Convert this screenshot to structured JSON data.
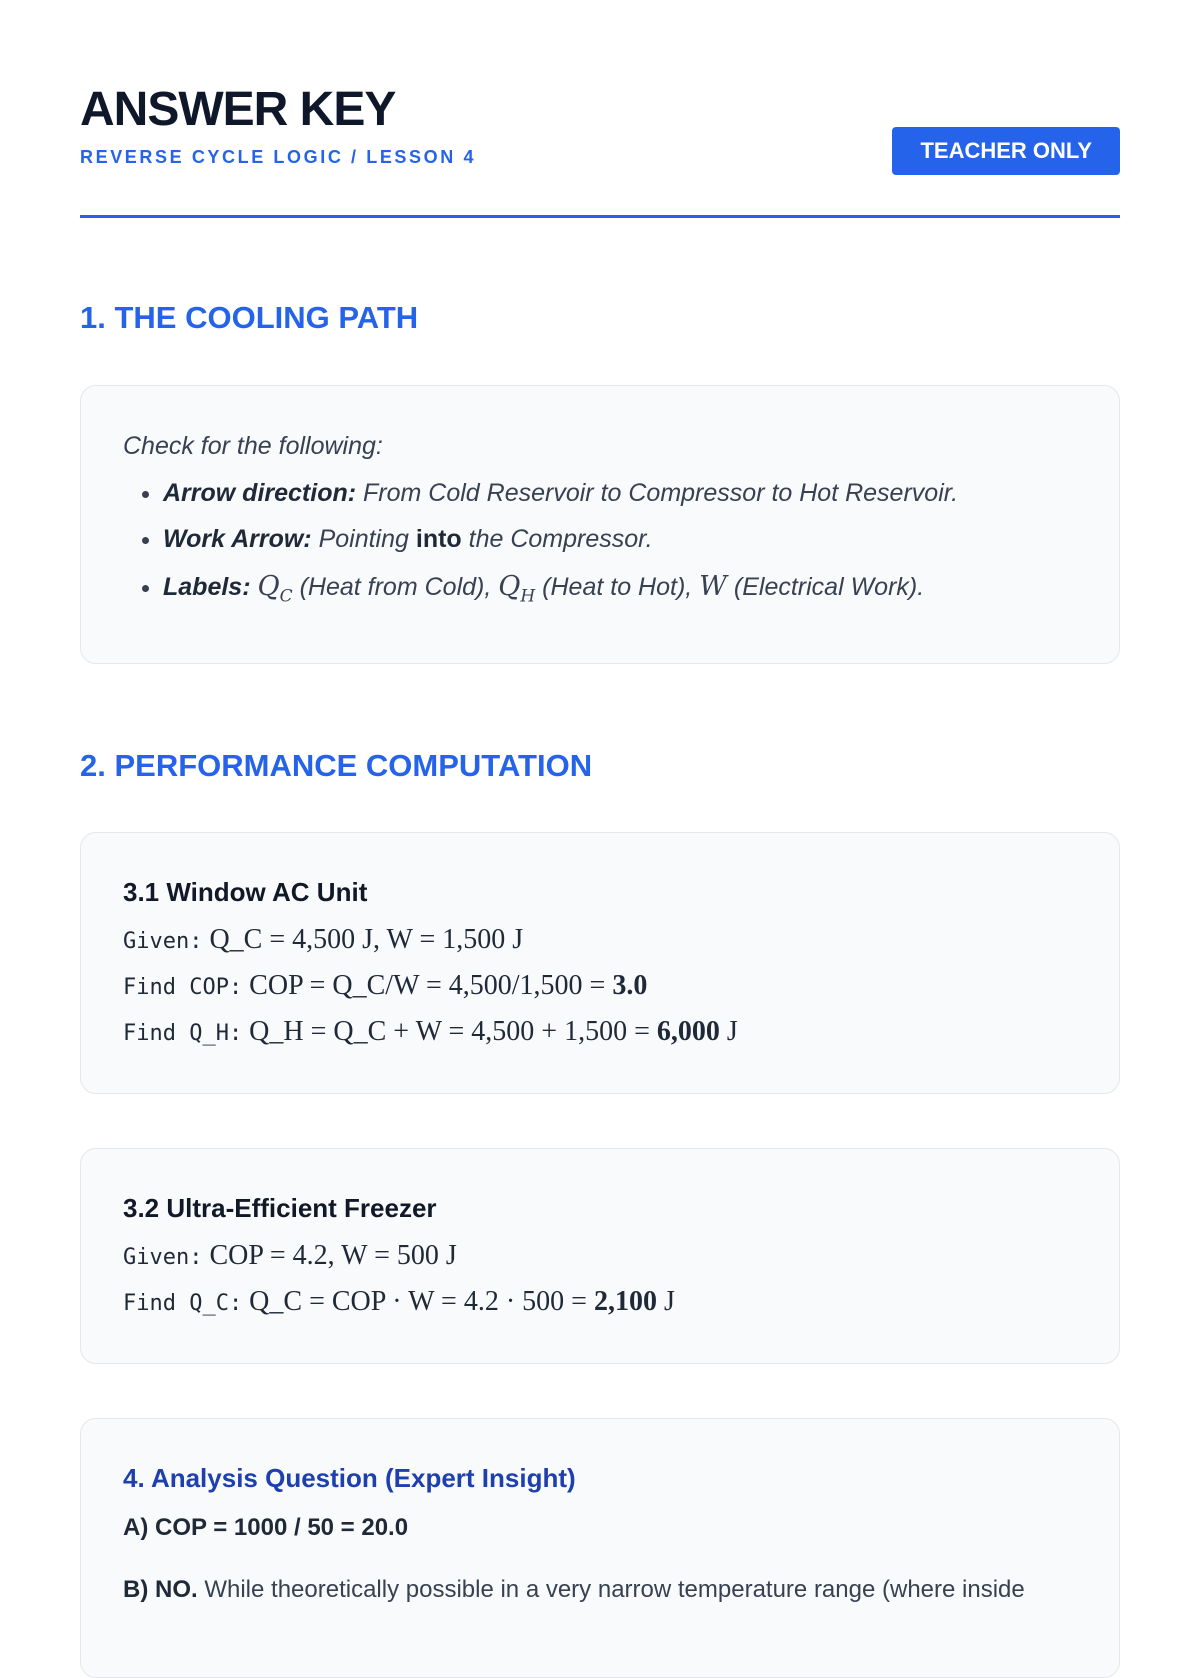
{
  "header": {
    "title": "ANSWER KEY",
    "subtitle": "REVERSE CYCLE LOGIC / LESSON 4",
    "badge": "TEACHER ONLY"
  },
  "section1": {
    "heading": "1. THE COOLING PATH",
    "intro": "Check for the following:",
    "items": [
      {
        "label": "Arrow direction:",
        "text": " From Cold Reservoir to Compressor to Hot Reservoir."
      },
      {
        "label": "Work Arrow:",
        "text_a": " Pointing ",
        "bold": "into",
        "text_b": " the Compressor."
      },
      {
        "label": "Labels:",
        "qc": "Q",
        "qc_sub": "C",
        "t1": " (Heat from Cold), ",
        "qh": "Q",
        "qh_sub": "H",
        "t2": " (Heat to Hot), ",
        "w": "W",
        "t3": " (Electrical Work)."
      }
    ]
  },
  "section2": {
    "heading": "2. PERFORMANCE COMPUTATION",
    "p31": {
      "title": "3.1 Window AC Unit",
      "given_label": "Given:",
      "given_eq": "Q_C = 4,500 J,  W = 1,500 J",
      "cop_label": "Find COP:",
      "cop_eq": "COP = Q_C/W = 4,500/1,500 = ",
      "cop_result": "3.0",
      "qh_label": "Find Q_H:",
      "qh_eq": "Q_H = Q_C + W = 4,500 + 1,500 = ",
      "qh_result": "6,000",
      "qh_unit": " J"
    },
    "p32": {
      "title": "3.2 Ultra-Efficient Freezer",
      "given_label": "Given:",
      "given_eq": "COP = 4.2,  W = 500 J",
      "qc_label": "Find Q_C:",
      "qc_eq": "Q_C = COP · W = 4.2 · 500 = ",
      "qc_result": "2,100",
      "qc_unit": " J"
    },
    "p4": {
      "title": "4. Analysis Question (Expert Insight)",
      "a": "A) COP = 1000 / 50 = 20.0",
      "b_label": "B) NO.",
      "b_text": " While theoretically possible in a very narrow temperature range (where inside"
    }
  }
}
